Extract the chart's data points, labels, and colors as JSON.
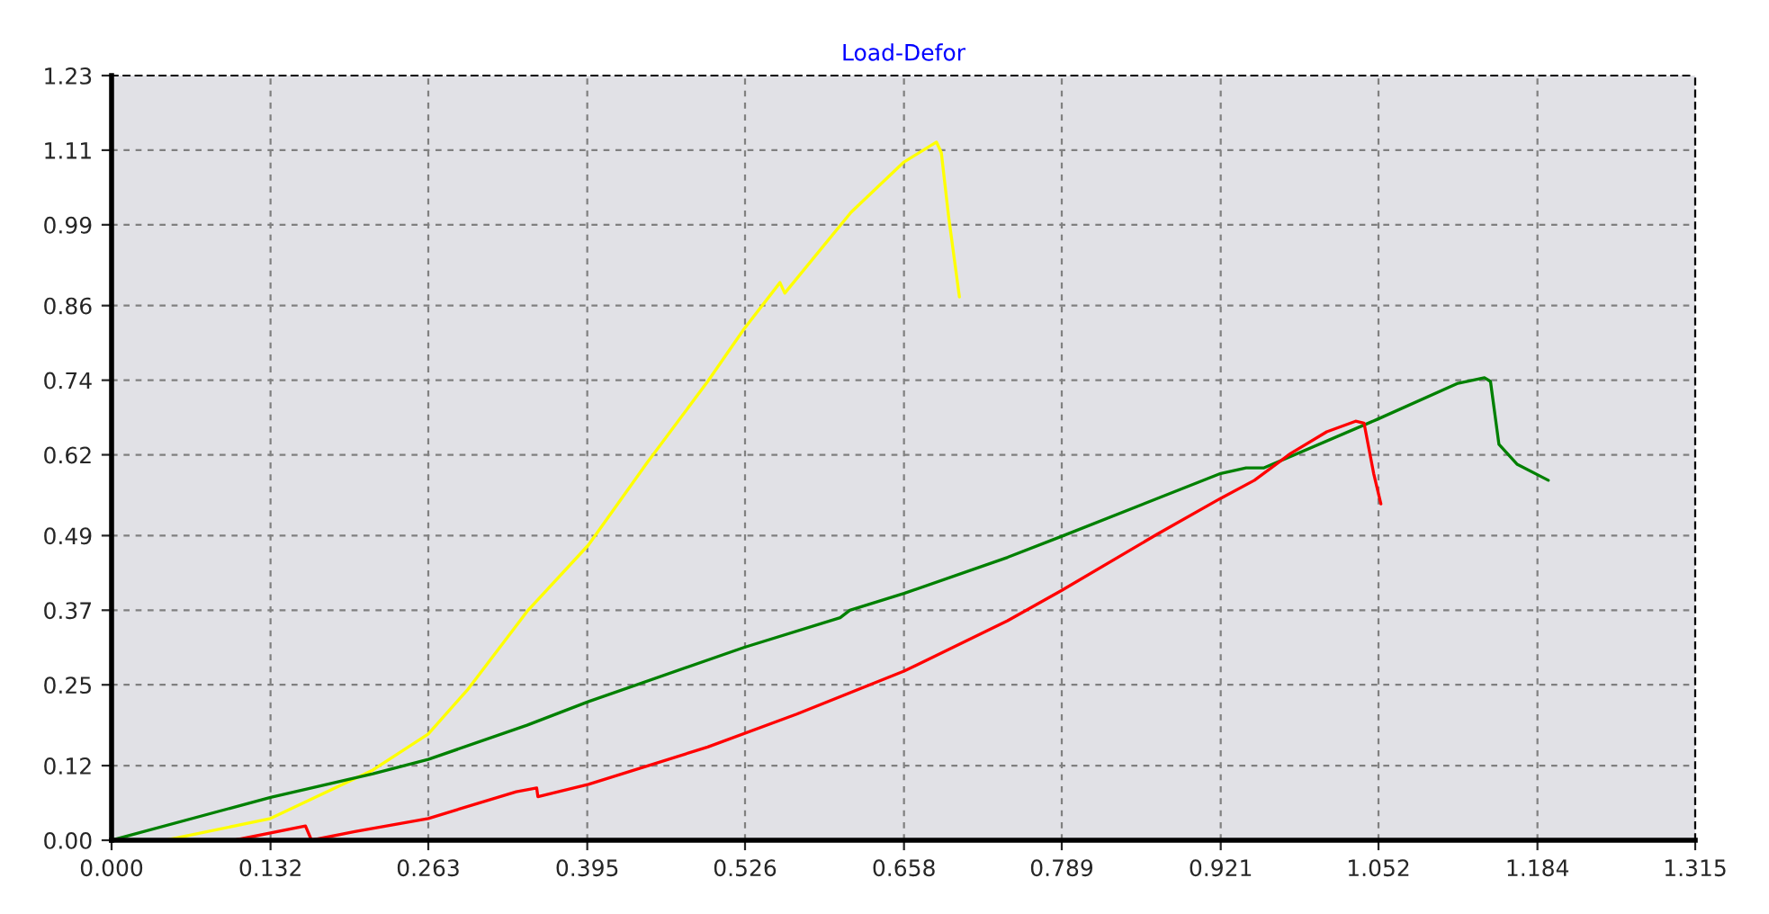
{
  "chart_data": {
    "type": "line",
    "title": "Load-Defor",
    "xlim": [
      0,
      1.315
    ],
    "ylim": [
      0,
      1.23
    ],
    "xticks": [
      {
        "value": 0,
        "label": "0.000"
      },
      0.132,
      0.263,
      0.395,
      0.526,
      0.658,
      0.789,
      0.921,
      1.052,
      1.184,
      1.315
    ],
    "yticks": [
      {
        "value": 0,
        "label": "0.00"
      },
      0.12,
      0.25,
      0.37,
      0.49,
      0.62,
      0.74,
      0.86,
      0.99,
      1.11,
      1.23
    ],
    "grid": true,
    "legend": false,
    "marker": "none",
    "line_style": "solid",
    "series": [
      {
        "color": "#ffff00",
        "x": [
          0.045,
          0.132,
          0.217,
          0.263,
          0.296,
          0.345,
          0.396,
          0.445,
          0.495,
          0.525,
          0.555,
          0.559,
          0.614,
          0.658,
          0.685,
          0.689,
          0.695,
          0.704
        ],
        "values": [
          0,
          0.035,
          0.113,
          0.171,
          0.243,
          0.368,
          0.475,
          0.608,
          0.738,
          0.822,
          0.897,
          0.88,
          1.01,
          1.091,
          1.123,
          1.106,
          1.004,
          0.874
        ]
      },
      {
        "color": "#008000",
        "x": [
          0,
          0.132,
          0.217,
          0.263,
          0.345,
          0.396,
          0.525,
          0.605,
          0.613,
          0.658,
          0.744,
          0.789,
          0.921,
          0.942,
          0.957,
          1.051,
          1.118,
          1.14,
          1.145,
          1.152,
          1.167,
          1.193
        ],
        "values": [
          0,
          0.069,
          0.107,
          0.13,
          0.185,
          0.223,
          0.31,
          0.358,
          0.37,
          0.397,
          0.455,
          0.489,
          0.59,
          0.599,
          0.599,
          0.677,
          0.735,
          0.744,
          0.738,
          0.637,
          0.605,
          0.579
        ]
      },
      {
        "color": "#ff0000",
        "x": [
          0.102,
          0.161,
          0.166,
          0.202,
          0.263,
          0.336,
          0.353,
          0.354,
          0.396,
          0.495,
          0.569,
          0.658,
          0.744,
          0.789,
          0.868,
          0.921,
          0.949,
          0.979,
          1.009,
          1.033,
          1.04,
          1.048,
          1.054
        ],
        "values": [
          0,
          0.023,
          0,
          0.014,
          0.035,
          0.078,
          0.084,
          0.07,
          0.09,
          0.15,
          0.203,
          0.272,
          0.353,
          0.402,
          0.492,
          0.55,
          0.579,
          0.622,
          0.657,
          0.674,
          0.671,
          0.59,
          0.541
        ]
      }
    ]
  }
}
